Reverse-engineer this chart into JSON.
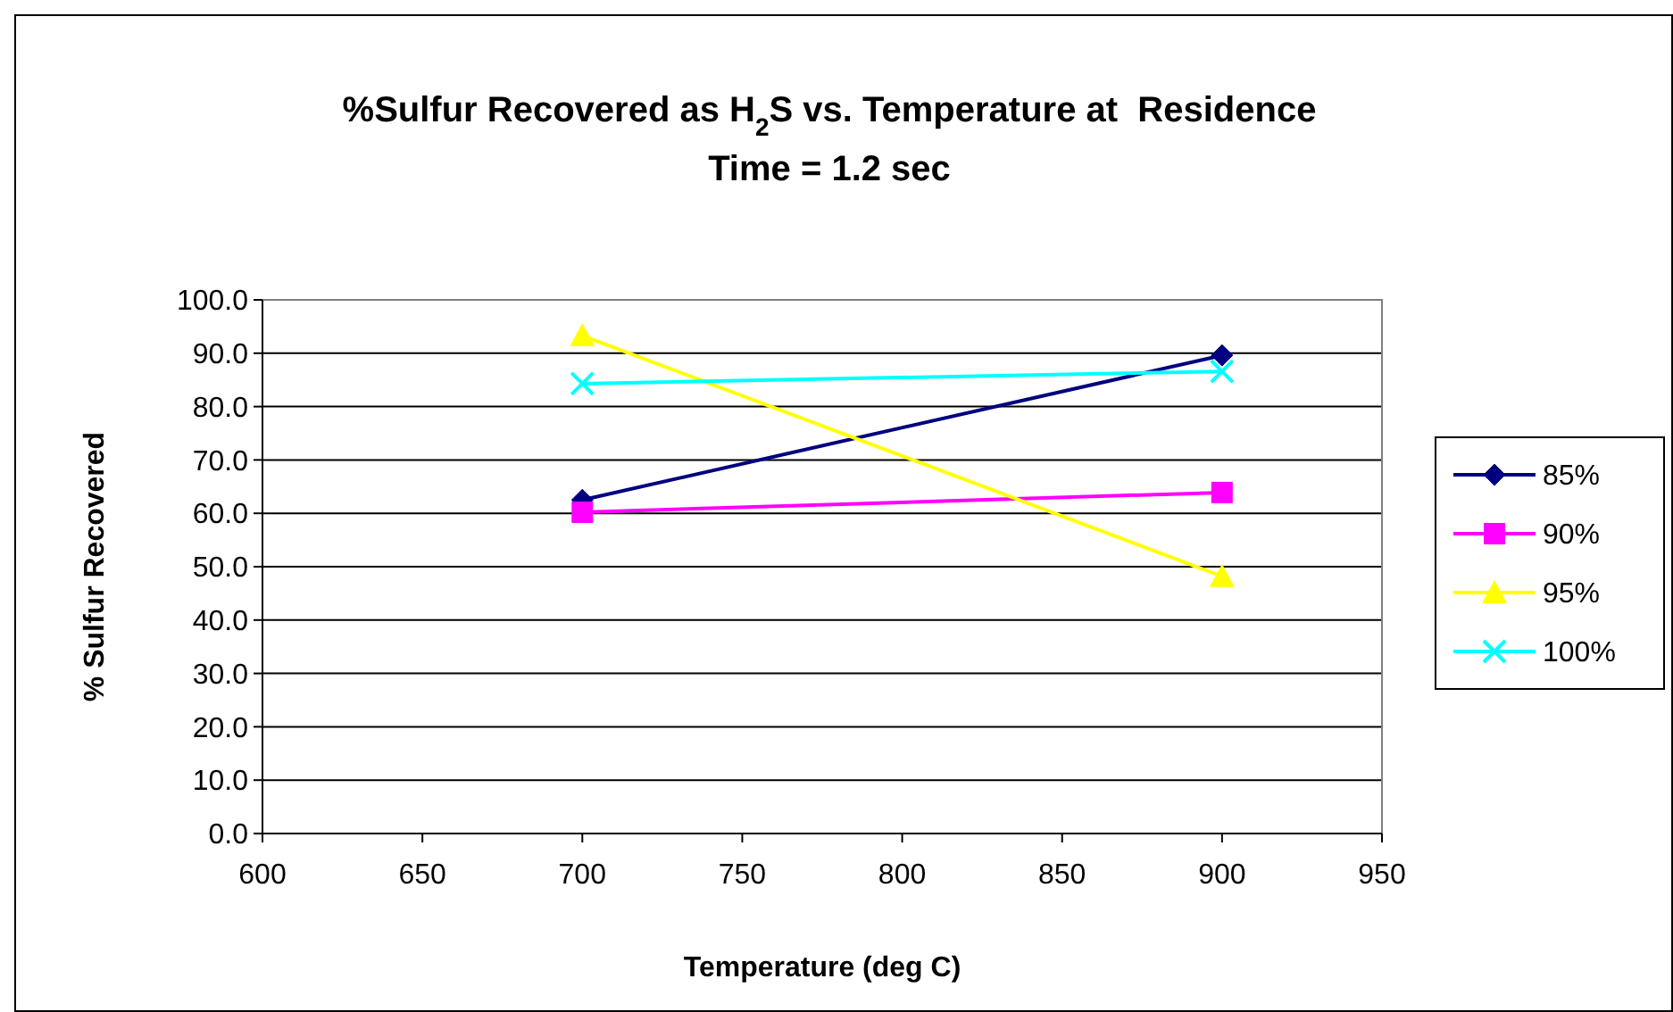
{
  "chart_data": {
    "type": "line",
    "title": "%Sulfur Recovered as H$_{2}$S vs. Temperature at  Residence",
    "subtitle": "Time = 1.2 sec",
    "xlabel": "Temperature (deg C)",
    "ylabel": "% Sulfur Recovered",
    "x": [
      700,
      900
    ],
    "series": [
      {
        "name": "85%",
        "color": "#000080",
        "marker": "diamond",
        "values": [
          62.5,
          89.6
        ]
      },
      {
        "name": "90%",
        "color": "#ff00ff",
        "marker": "square",
        "values": [
          60.2,
          63.9
        ]
      },
      {
        "name": "95%",
        "color": "#ffff00",
        "marker": "triangle",
        "values": [
          93.3,
          48.2
        ]
      },
      {
        "name": "100%",
        "color": "#00ffff",
        "marker": "cross",
        "values": [
          84.3,
          86.6
        ]
      }
    ],
    "xlim": [
      600,
      950
    ],
    "xticks": [
      600,
      650,
      700,
      750,
      800,
      850,
      900,
      950
    ],
    "ylim": [
      0,
      100
    ],
    "yticks": [
      {
        "value": 0,
        "label": "0.0"
      },
      {
        "value": 10,
        "label": "10.0"
      },
      {
        "value": 20,
        "label": "20.0"
      },
      {
        "value": 30,
        "label": "30.0"
      },
      {
        "value": 40,
        "label": "40.0"
      },
      {
        "value": 50,
        "label": "50.0"
      },
      {
        "value": 60,
        "label": "60.0"
      },
      {
        "value": 70,
        "label": "70.0"
      },
      {
        "value": 80,
        "label": "80.0"
      },
      {
        "value": 90,
        "label": "90.0"
      },
      {
        "value": 100,
        "label": "100.0"
      }
    ],
    "grid": "y",
    "legend": "right",
    "line_style": "solid"
  }
}
